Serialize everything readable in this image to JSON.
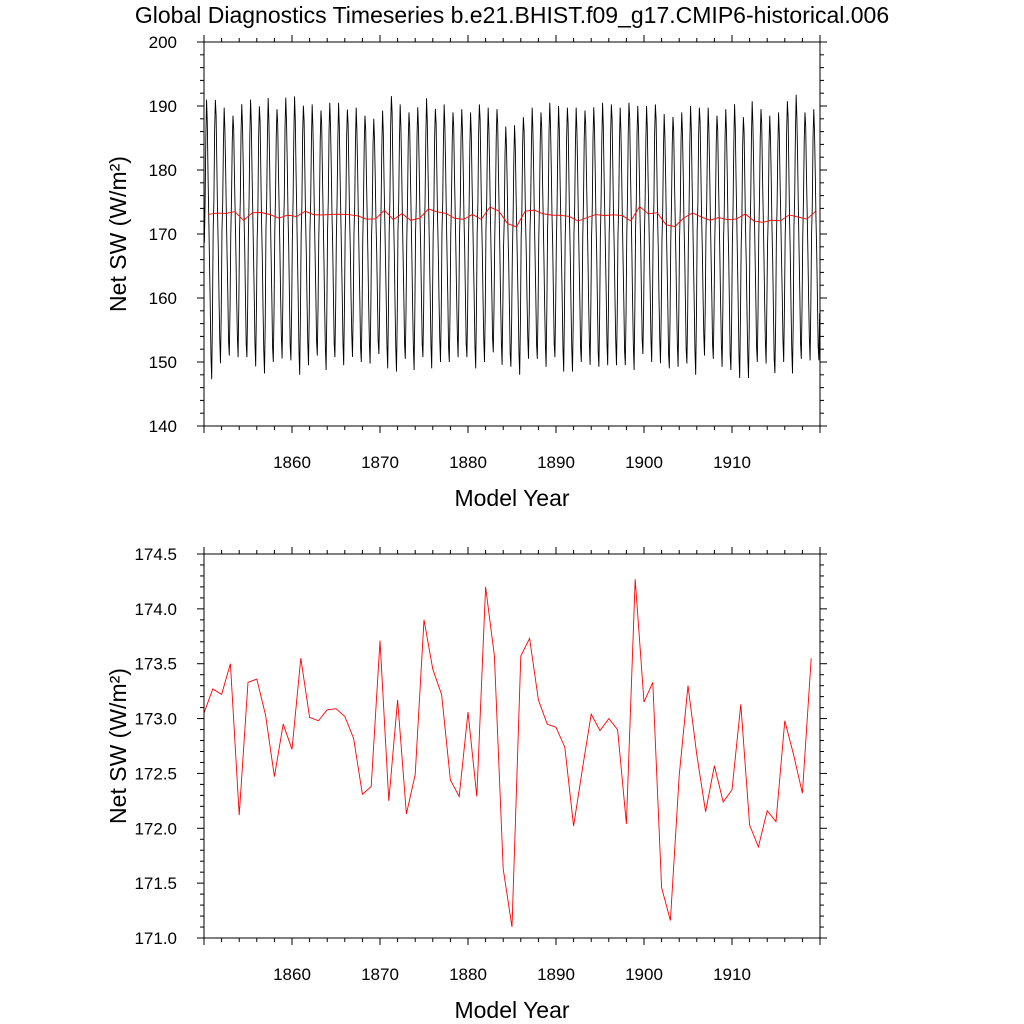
{
  "title": "Global Diagnostics Timeseries b.e21.BHIST.f09_g17.CMIP6-historical.006",
  "chart_data": [
    {
      "type": "line",
      "xlabel": "Model Year",
      "ylabel": "Net SW (W/m²)",
      "xlim": [
        1850,
        1920
      ],
      "ylim": [
        140,
        200
      ],
      "xticks": [
        1860,
        1870,
        1880,
        1890,
        1900,
        1910
      ],
      "yticks": [
        140,
        150,
        160,
        170,
        180,
        190,
        200
      ],
      "grid": false,
      "series": [
        {
          "kind": "monthly",
          "color": "#000000",
          "seasonal_max": [
            190.5,
            191.2,
            189.5,
            189.0,
            190.3,
            190.5,
            190.2,
            191.0,
            190.0,
            191.3,
            191.0,
            190.3,
            190.0,
            189.8,
            190.5,
            190.0,
            189.7,
            189.5,
            189.0,
            188.0,
            188.8,
            191.8,
            190.0,
            189.5,
            189.8,
            190.7,
            189.8,
            190.0,
            189.5,
            189.5,
            188.5,
            190.5,
            189.5,
            190.0,
            186.8,
            186.5,
            188.5,
            189.5,
            189.5,
            190.5,
            189.5,
            190.0,
            189.5,
            189.8,
            189.8,
            190.0,
            190.5,
            189.5,
            191.0,
            190.0,
            189.5,
            190.5,
            188.5,
            188.8,
            189.0,
            189.5,
            190.0,
            189.5,
            189.0,
            189.5,
            189.8,
            188.5,
            190.5,
            190.0,
            188.5,
            188.5,
            191.0,
            191.5,
            189.5,
            189.5
          ],
          "seasonal_min": [
            147.8,
            149.8,
            150.5,
            151.0,
            150.5,
            149.8,
            148.2,
            149.5,
            150.8,
            150.0,
            148.5,
            149.5,
            150.5,
            149.0,
            150.5,
            150.0,
            150.8,
            149.5,
            150.0,
            151.0,
            149.5,
            148.5,
            150.0,
            149.0,
            150.5,
            149.5,
            150.0,
            149.5,
            151.0,
            150.5,
            149.5,
            150.0,
            151.0,
            149.8,
            149.0,
            148.5,
            150.5,
            150.0,
            149.5,
            150.5,
            149.0,
            148.5,
            149.5,
            149.8,
            149.0,
            150.0,
            149.5,
            149.0,
            149.0,
            151.0,
            150.5,
            149.8,
            148.5,
            149.5,
            149.5,
            148.5,
            151.0,
            150.0,
            149.5,
            148.5,
            148.0,
            147.5,
            149.5,
            150.0,
            148.0,
            150.5,
            148.2,
            150.0,
            150.5,
            150.0
          ]
        },
        {
          "kind": "annual",
          "color": "#ff0000",
          "x": [
            1850.5,
            1851.5,
            1852.5,
            1853.5,
            1854.5,
            1855.5,
            1856.5,
            1857.5,
            1858.5,
            1859.5,
            1860.5,
            1861.5,
            1862.5,
            1863.5,
            1864.5,
            1865.5,
            1866.5,
            1867.5,
            1868.5,
            1869.5,
            1870.5,
            1871.5,
            1872.5,
            1873.5,
            1874.5,
            1875.5,
            1876.5,
            1877.5,
            1878.5,
            1879.5,
            1880.5,
            1881.5,
            1882.5,
            1883.5,
            1884.5,
            1885.5,
            1886.5,
            1887.5,
            1888.5,
            1889.5,
            1890.5,
            1891.5,
            1892.5,
            1893.5,
            1894.5,
            1895.5,
            1896.5,
            1897.5,
            1898.5,
            1899.5,
            1900.5,
            1901.5,
            1902.5,
            1903.5,
            1904.5,
            1905.5,
            1906.5,
            1907.5,
            1908.5,
            1909.5,
            1910.5,
            1911.5,
            1912.5,
            1913.5,
            1914.5,
            1915.5,
            1916.5,
            1917.5,
            1918.5,
            1919.5
          ],
          "y": [
            173.05,
            173.27,
            173.22,
            173.5,
            172.12,
            173.33,
            173.36,
            173.03,
            172.47,
            172.95,
            172.72,
            173.55,
            173.01,
            172.98,
            173.08,
            173.09,
            173.02,
            172.82,
            172.31,
            172.38,
            173.71,
            172.25,
            173.17,
            172.13,
            172.49,
            173.9,
            173.45,
            173.22,
            172.44,
            172.29,
            173.06,
            172.29,
            174.2,
            173.57,
            171.63,
            171.1,
            173.57,
            173.73,
            173.17,
            172.95,
            172.92,
            172.74,
            172.02,
            172.54,
            173.04,
            172.89,
            173.0,
            172.9,
            172.04,
            174.27,
            173.15,
            173.33,
            171.46,
            171.16,
            172.48,
            173.3,
            172.67,
            172.15,
            172.57,
            172.24,
            172.35,
            173.13,
            172.03,
            171.83,
            172.16,
            172.06,
            172.98,
            172.67,
            172.32,
            173.55
          ]
        }
      ]
    },
    {
      "type": "line",
      "xlabel": "Model Year",
      "ylabel": "Net SW (W/m²)",
      "xlim": [
        1850,
        1920
      ],
      "ylim": [
        171.0,
        174.5
      ],
      "xticks": [
        1860,
        1870,
        1880,
        1890,
        1900,
        1910
      ],
      "yticks": [
        171.0,
        171.5,
        172.0,
        172.5,
        173.0,
        173.5,
        174.0,
        174.5
      ],
      "ytick_labels": [
        "171.0",
        "171.5",
        "172.0",
        "172.5",
        "173.0",
        "173.5",
        "174.0",
        "174.5"
      ],
      "grid": false,
      "series": [
        {
          "kind": "annual",
          "color": "#ff0000",
          "x": [
            1850.0,
            1851.0,
            1852.0,
            1853.0,
            1854.0,
            1855.0,
            1856.0,
            1857.0,
            1858.0,
            1859.0,
            1860.0,
            1861.0,
            1862.0,
            1863.0,
            1864.0,
            1865.0,
            1866.0,
            1867.0,
            1868.0,
            1869.0,
            1870.0,
            1871.0,
            1872.0,
            1873.0,
            1874.0,
            1875.0,
            1876.0,
            1877.0,
            1878.0,
            1879.0,
            1880.0,
            1881.0,
            1882.0,
            1883.0,
            1884.0,
            1885.0,
            1886.0,
            1887.0,
            1888.0,
            1889.0,
            1890.0,
            1891.0,
            1892.0,
            1893.0,
            1894.0,
            1895.0,
            1896.0,
            1897.0,
            1898.0,
            1899.0,
            1900.0,
            1901.0,
            1902.0,
            1903.0,
            1904.0,
            1905.0,
            1906.0,
            1907.0,
            1908.0,
            1909.0,
            1910.0,
            1911.0,
            1912.0,
            1913.0,
            1914.0,
            1915.0,
            1916.0,
            1917.0,
            1918.0,
            1919.0
          ],
          "y": [
            173.05,
            173.27,
            173.22,
            173.5,
            172.12,
            173.33,
            173.36,
            173.03,
            172.47,
            172.95,
            172.72,
            173.55,
            173.01,
            172.98,
            173.08,
            173.09,
            173.02,
            172.82,
            172.31,
            172.38,
            173.71,
            172.25,
            173.17,
            172.13,
            172.49,
            173.9,
            173.45,
            173.22,
            172.44,
            172.29,
            173.06,
            172.29,
            174.2,
            173.57,
            171.63,
            171.1,
            173.57,
            173.73,
            173.17,
            172.95,
            172.92,
            172.74,
            172.02,
            172.54,
            173.04,
            172.89,
            173.0,
            172.9,
            172.04,
            174.27,
            173.15,
            173.33,
            171.46,
            171.16,
            172.48,
            173.3,
            172.67,
            172.15,
            172.57,
            172.24,
            172.35,
            173.13,
            172.03,
            171.83,
            172.16,
            172.06,
            172.98,
            172.67,
            172.32,
            173.55
          ]
        }
      ]
    }
  ]
}
